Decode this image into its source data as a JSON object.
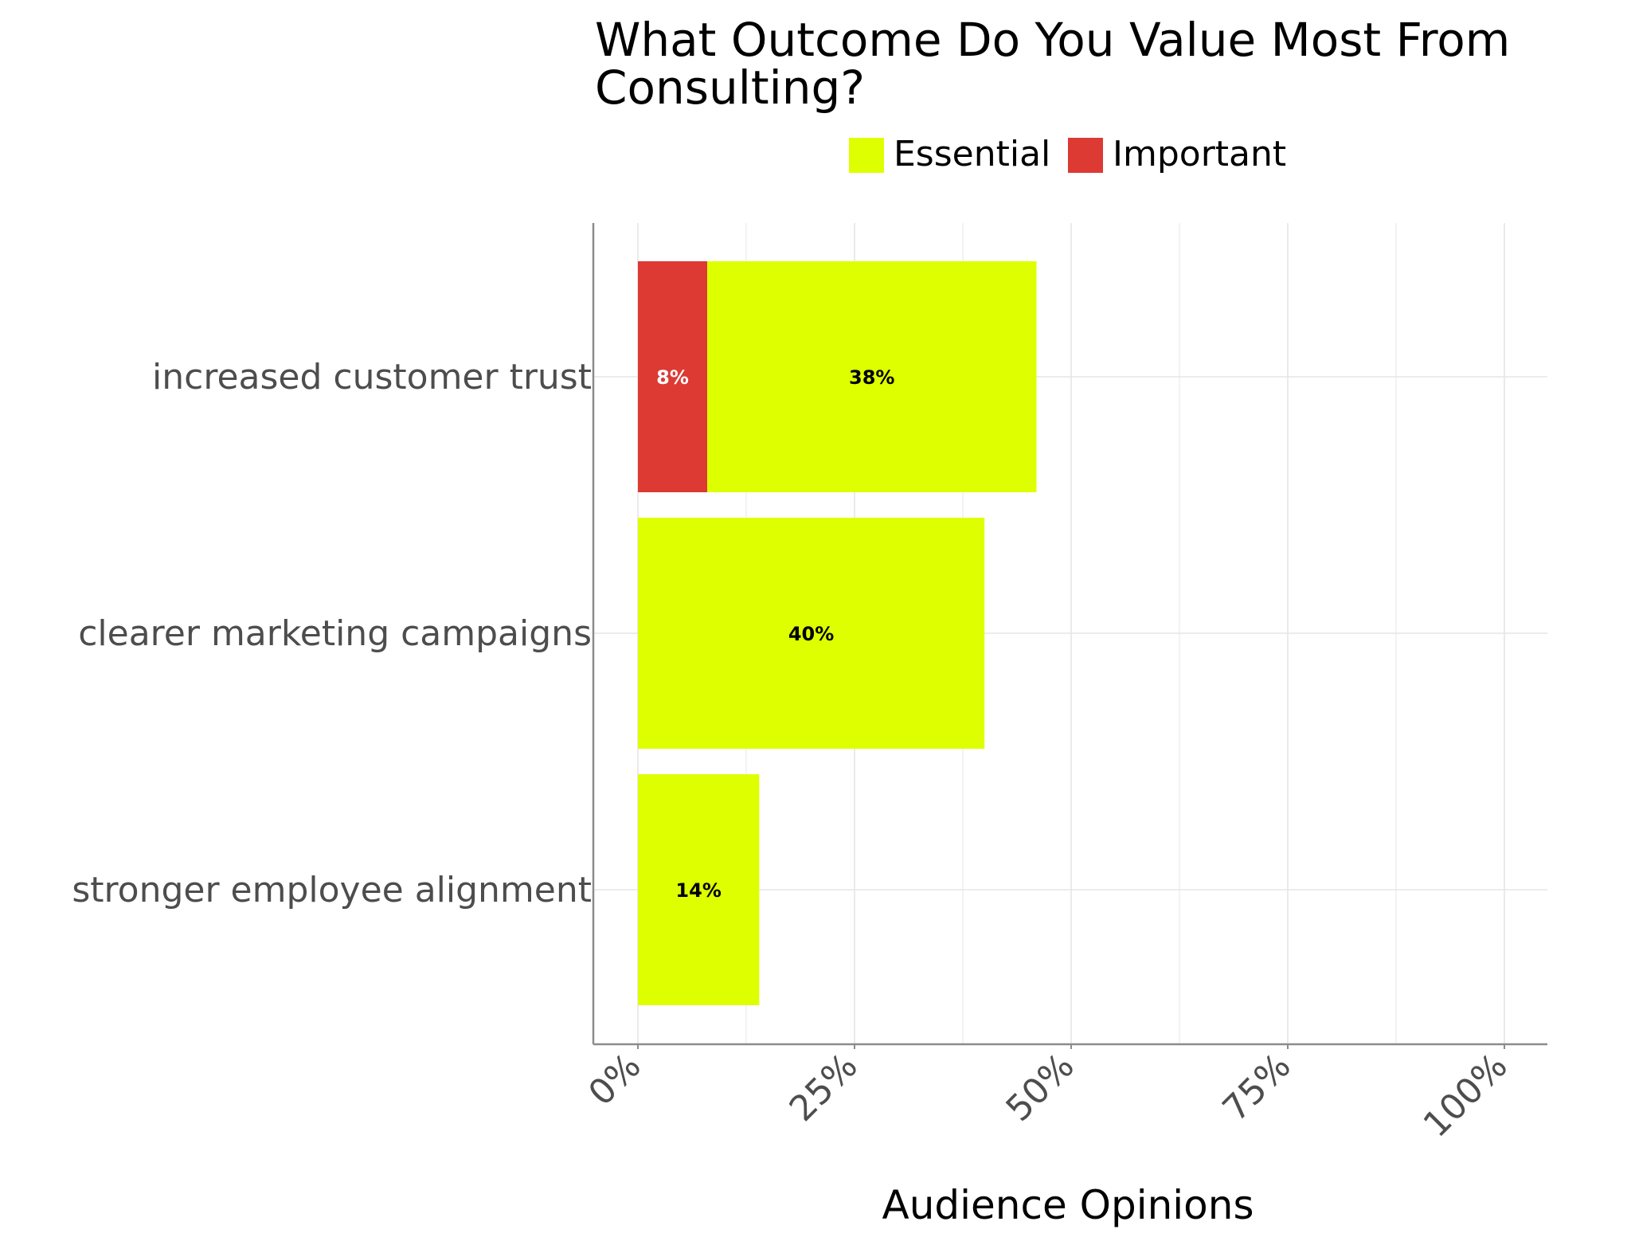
{
  "chart_data": {
    "type": "bar",
    "orientation": "horizontal",
    "stacked": true,
    "title": "What Outcome Do You Value Most From\nConsulting?",
    "xlabel": "Audience Opinions",
    "ylabel": "",
    "xlim": [
      0,
      100
    ],
    "x_ticks": [
      "0%",
      "25%",
      "50%",
      "75%",
      "100%"
    ],
    "x_tick_values": [
      0,
      25,
      50,
      75,
      100
    ],
    "grid": true,
    "legend_position": "top",
    "categories": [
      "increased customer trust",
      "clearer marketing campaigns",
      "stronger employee alignment"
    ],
    "series": [
      {
        "name": "Important",
        "color": "#dc3a33",
        "label_color": "#ffffff",
        "values": [
          8,
          0,
          0
        ],
        "labels": [
          "8%",
          "",
          ""
        ]
      },
      {
        "name": "Essential",
        "color": "#deff00",
        "label_color": "#000000",
        "values": [
          38,
          40,
          14
        ],
        "labels": [
          "38%",
          "40%",
          "14%"
        ]
      }
    ],
    "legend": [
      {
        "name": "Essential",
        "color": "#deff00"
      },
      {
        "name": "Important",
        "color": "#dc3a33"
      }
    ],
    "colors": {
      "grid": "#e5e5e5",
      "axis": "#8c8c8c"
    }
  }
}
